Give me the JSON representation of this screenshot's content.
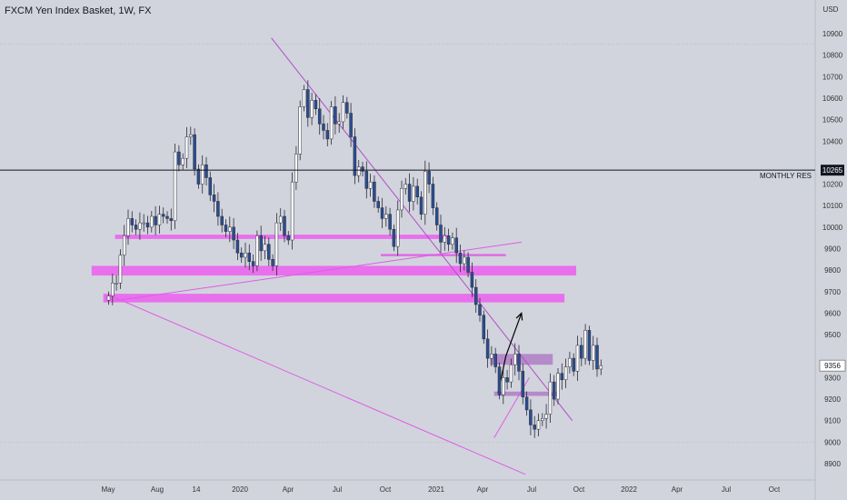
{
  "header": {
    "title": "FXCM Yen Index Basket, 1W, FX"
  },
  "axis": {
    "currency": "USD"
  },
  "colors": {
    "background": "#d1d4dc",
    "candle_up": "#ffffff",
    "candle_down": "#2a4d8f",
    "candle_border": "#2b2b3a",
    "zone_magenta": "#ec5ef0",
    "zone_purple": "#b07cc6",
    "trendline": "#b04fc9",
    "support_line": "#e05be8",
    "current_price_bg": "#ffffff",
    "level_bg": "#131722"
  },
  "chart_data": {
    "type": "candlestick",
    "timeframe": "1W",
    "ylim": [
      8850,
      10950
    ],
    "y_ticks": [
      8900,
      9000,
      9100,
      9200,
      9300,
      9400,
      9500,
      9600,
      9700,
      9800,
      9900,
      10000,
      10100,
      10200,
      10300,
      10400,
      10500,
      10600,
      10700,
      10800,
      10900
    ],
    "x_tick_labels": [
      "May",
      "Aug",
      "14",
      "2020",
      "Apr",
      "Jul",
      "Oct",
      "2021",
      "Apr",
      "Jul",
      "Oct",
      "2022",
      "Apr",
      "Jul",
      "Oct"
    ],
    "current_price": 9356,
    "horizontal_levels": [
      {
        "label": "MONTHLY RES",
        "value": 10265
      }
    ],
    "close_path": [
      [
        0,
        9680
      ],
      [
        1,
        9740
      ],
      [
        2,
        9740
      ],
      [
        3,
        9870
      ],
      [
        4,
        9960
      ],
      [
        5,
        10040
      ],
      [
        6,
        10010
      ],
      [
        7,
        9990
      ],
      [
        8,
        10020
      ],
      [
        9,
        10020
      ],
      [
        10,
        10000
      ],
      [
        11,
        10050
      ],
      [
        12,
        10010
      ],
      [
        13,
        10060
      ],
      [
        14,
        10050
      ],
      [
        15,
        10040
      ],
      [
        16,
        10030
      ],
      [
        17,
        10350
      ],
      [
        18,
        10290
      ],
      [
        19,
        10320
      ],
      [
        20,
        10420
      ],
      [
        21,
        10430
      ],
      [
        22,
        10270
      ],
      [
        23,
        10200
      ],
      [
        24,
        10290
      ],
      [
        25,
        10230
      ],
      [
        26,
        10150
      ],
      [
        27,
        10120
      ],
      [
        28,
        10050
      ],
      [
        29,
        10010
      ],
      [
        30,
        9980
      ],
      [
        31,
        10000
      ],
      [
        32,
        9940
      ],
      [
        33,
        9880
      ],
      [
        34,
        9860
      ],
      [
        35,
        9880
      ],
      [
        36,
        9840
      ],
      [
        37,
        9820
      ],
      [
        38,
        9960
      ],
      [
        39,
        9890
      ],
      [
        40,
        9920
      ],
      [
        41,
        9850
      ],
      [
        42,
        9820
      ],
      [
        43,
        10020
      ],
      [
        44,
        10050
      ],
      [
        45,
        9960
      ],
      [
        46,
        9940
      ],
      [
        47,
        10210
      ],
      [
        48,
        10340
      ],
      [
        49,
        10560
      ],
      [
        50,
        10640
      ],
      [
        51,
        10510
      ],
      [
        52,
        10590
      ],
      [
        53,
        10550
      ],
      [
        54,
        10480
      ],
      [
        55,
        10450
      ],
      [
        56,
        10410
      ],
      [
        57,
        10560
      ],
      [
        58,
        10480
      ],
      [
        59,
        10490
      ],
      [
        60,
        10580
      ],
      [
        61,
        10530
      ],
      [
        62,
        10420
      ],
      [
        63,
        10240
      ],
      [
        64,
        10280
      ],
      [
        65,
        10260
      ],
      [
        66,
        10180
      ],
      [
        67,
        10210
      ],
      [
        68,
        10120
      ],
      [
        69,
        10090
      ],
      [
        70,
        10040
      ],
      [
        71,
        10060
      ],
      [
        72,
        9990
      ],
      [
        73,
        9910
      ],
      [
        74,
        10080
      ],
      [
        75,
        10180
      ],
      [
        76,
        10200
      ],
      [
        77,
        10120
      ],
      [
        78,
        10190
      ],
      [
        79,
        10140
      ],
      [
        80,
        10060
      ],
      [
        81,
        10260
      ],
      [
        82,
        10200
      ],
      [
        83,
        10090
      ],
      [
        84,
        10010
      ],
      [
        85,
        9930
      ],
      [
        86,
        9960
      ],
      [
        87,
        9920
      ],
      [
        88,
        9950
      ],
      [
        89,
        9880
      ],
      [
        90,
        9830
      ],
      [
        91,
        9860
      ],
      [
        92,
        9790
      ],
      [
        93,
        9720
      ],
      [
        94,
        9640
      ],
      [
        95,
        9590
      ],
      [
        96,
        9480
      ],
      [
        97,
        9390
      ],
      [
        98,
        9410
      ],
      [
        99,
        9350
      ],
      [
        100,
        9220
      ],
      [
        101,
        9300
      ],
      [
        102,
        9280
      ],
      [
        103,
        9360
      ],
      [
        104,
        9410
      ],
      [
        105,
        9330
      ],
      [
        106,
        9210
      ],
      [
        107,
        9150
      ],
      [
        108,
        9080
      ],
      [
        109,
        9060
      ],
      [
        110,
        9100
      ],
      [
        111,
        9110
      ],
      [
        112,
        9130
      ],
      [
        113,
        9280
      ],
      [
        114,
        9200
      ],
      [
        115,
        9320
      ],
      [
        116,
        9290
      ],
      [
        117,
        9350
      ],
      [
        118,
        9390
      ],
      [
        119,
        9330
      ],
      [
        120,
        9450
      ],
      [
        121,
        9390
      ],
      [
        122,
        9520
      ],
      [
        123,
        9380
      ],
      [
        124,
        9450
      ],
      [
        125,
        9340
      ],
      [
        126,
        9356
      ]
    ],
    "zones": [
      {
        "from_bar": 2,
        "to_bar": 87,
        "low": 9945,
        "high": 9965
      },
      {
        "from_bar": -4,
        "to_bar": 120,
        "low": 9775,
        "high": 9820
      },
      {
        "from_bar": -1,
        "to_bar": 117,
        "low": 9650,
        "high": 9690
      },
      {
        "from_bar": 70,
        "to_bar": 102,
        "low": 9865,
        "high": 9875
      },
      {
        "from_bar": 98,
        "to_bar": 114,
        "low": 9360,
        "high": 9410
      },
      {
        "from_bar": 99,
        "to_bar": 115,
        "low": 9215,
        "high": 9235
      }
    ],
    "trendlines": [
      {
        "from": [
          42,
          10880
        ],
        "to": [
          119,
          9100
        ]
      },
      {
        "from": [
          1,
          9680
        ],
        "to": [
          107,
          8850
        ]
      },
      {
        "from": [
          1,
          9655
        ],
        "to": [
          106,
          9930
        ]
      },
      {
        "from": [
          99,
          9020
        ],
        "to": [
          108,
          9300
        ]
      }
    ],
    "projection": [
      [
        100,
        9230
      ],
      [
        102,
        9400
      ],
      [
        106,
        9600
      ]
    ],
    "annotations": {
      "level_label": "MONTHLY RES"
    }
  }
}
